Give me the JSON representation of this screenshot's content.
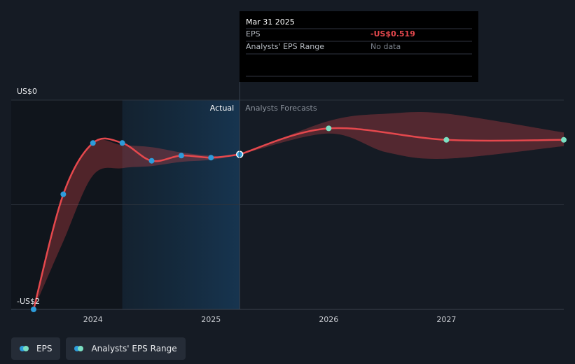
{
  "chart_data": {
    "type": "line",
    "x_axis": {
      "ticks": [
        {
          "label": "2024",
          "x": "2024-01-01"
        },
        {
          "label": "2025",
          "x": "2025-01-01"
        },
        {
          "label": "2026",
          "x": "2026-01-01"
        },
        {
          "label": "2027",
          "x": "2027-01-01"
        }
      ],
      "range": [
        "2023-07-01",
        "2027-12-31"
      ]
    },
    "y_axis": {
      "ticks": [
        {
          "label": "US$0",
          "value": 0
        },
        {
          "label": "-US$2",
          "value": -2
        }
      ],
      "range": [
        -2.0,
        0.0
      ],
      "gridlines": [
        0,
        -1,
        -2
      ]
    },
    "section_labels": {
      "actual": "Actual",
      "forecast": "Analysts Forecasts"
    },
    "shading": {
      "past": [
        "2023-07-01",
        "2024-04-01"
      ],
      "highlight": [
        "2024-04-01",
        "2025-03-31"
      ]
    },
    "series": [
      {
        "name": "EPS",
        "role": "actual",
        "color": "#e5484d",
        "marker_color": "#2d9cdb",
        "points": [
          {
            "x": "2023-07-01",
            "y": -2.0
          },
          {
            "x": "2023-10-01",
            "y": -0.9
          },
          {
            "x": "2024-01-01",
            "y": -0.41
          },
          {
            "x": "2024-04-01",
            "y": -0.41
          },
          {
            "x": "2024-07-01",
            "y": -0.58
          },
          {
            "x": "2024-10-01",
            "y": -0.53
          },
          {
            "x": "2025-01-01",
            "y": -0.55
          },
          {
            "x": "2025-03-31",
            "y": -0.519
          }
        ]
      },
      {
        "name": "EPS",
        "role": "forecast",
        "color": "#e5484d",
        "marker_color": "#7be0c3",
        "points": [
          {
            "x": "2025-03-31",
            "y": -0.519
          },
          {
            "x": "2026-01-01",
            "y": -0.27
          },
          {
            "x": "2027-01-01",
            "y": -0.38
          },
          {
            "x": "2027-12-31",
            "y": -0.38
          }
        ]
      }
    ],
    "range_band": {
      "name": "Analysts' EPS Range",
      "color": "#e5484d",
      "points": [
        {
          "x": "2023-07-01",
          "high": -2.0,
          "low": -2.0
        },
        {
          "x": "2023-10-01",
          "high": -0.9,
          "low": -1.35
        },
        {
          "x": "2024-01-01",
          "high": -0.41,
          "low": -0.72
        },
        {
          "x": "2024-04-01",
          "high": -0.43,
          "low": -0.65
        },
        {
          "x": "2024-07-01",
          "high": -0.45,
          "low": -0.63
        },
        {
          "x": "2024-10-01",
          "high": -0.5,
          "low": -0.59
        },
        {
          "x": "2025-01-01",
          "high": -0.53,
          "low": -0.57
        },
        {
          "x": "2025-03-31",
          "high": -0.519,
          "low": -0.519
        },
        {
          "x": "2026-01-01",
          "high": -0.2,
          "low": -0.32
        },
        {
          "x": "2026-07-01",
          "high": -0.13,
          "low": -0.5
        },
        {
          "x": "2027-01-01",
          "high": -0.13,
          "low": -0.56
        },
        {
          "x": "2027-12-31",
          "high": -0.31,
          "low": -0.44
        }
      ]
    },
    "tooltip": {
      "date": "Mar 31 2025",
      "rows": [
        {
          "label": "EPS",
          "value": "-US$0.519",
          "value_color": "#e5484d"
        },
        {
          "label": "Analysts' EPS Range",
          "value": "No data",
          "value_color": "#7b828c"
        }
      ],
      "anchor_x": "2025-03-31"
    },
    "legend": {
      "placement": "bottom-left",
      "items": [
        {
          "label": "EPS",
          "color_a": "#2d9cdb",
          "color_b": "#7be0c3"
        },
        {
          "label": "Analysts' EPS Range",
          "color_a": "#2d9cdb",
          "color_b": "#7be0c3"
        }
      ]
    }
  }
}
